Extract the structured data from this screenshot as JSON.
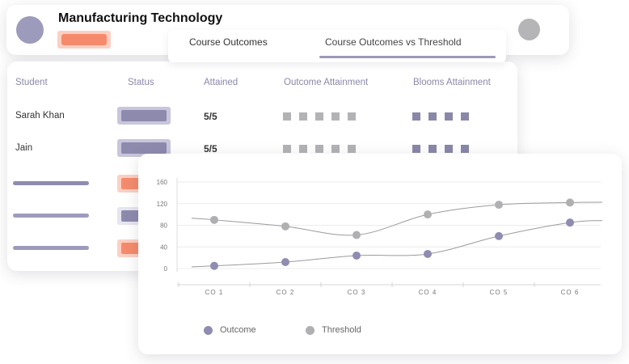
{
  "header": {
    "title": "Manufacturing Technology"
  },
  "tabs": [
    {
      "label": "Course Outcomes"
    },
    {
      "label": "Course Outcomes vs Threshold"
    }
  ],
  "table": {
    "columns": [
      "Student",
      "Status",
      "Attained",
      "Outcome Attainment",
      "Blooms Attainment"
    ],
    "rows": [
      {
        "name": "Sarah Khan",
        "attained": "5/5",
        "status_color": "purple"
      },
      {
        "name": "Jain",
        "attained": "5/5",
        "status_color": "purple"
      }
    ]
  },
  "colors": {
    "outcome": "#8f8cb2",
    "threshold": "#b0b0b3",
    "accent_orange": "#f58b6c"
  },
  "chart_data": {
    "type": "line",
    "categories": [
      "CO 1",
      "CO 2",
      "CO 3",
      "CO 4",
      "CO 5",
      "CO 6"
    ],
    "series": [
      {
        "name": "Outcome",
        "values": [
          5,
          12,
          24,
          27,
          60,
          85
        ]
      },
      {
        "name": "Threshold",
        "values": [
          90,
          78,
          62,
          100,
          118,
          122
        ]
      }
    ],
    "yticks": [
      0,
      40,
      80,
      120,
      160
    ],
    "ylim": [
      0,
      160
    ],
    "legend": [
      "Outcome",
      "Threshold"
    ],
    "grid": true
  }
}
